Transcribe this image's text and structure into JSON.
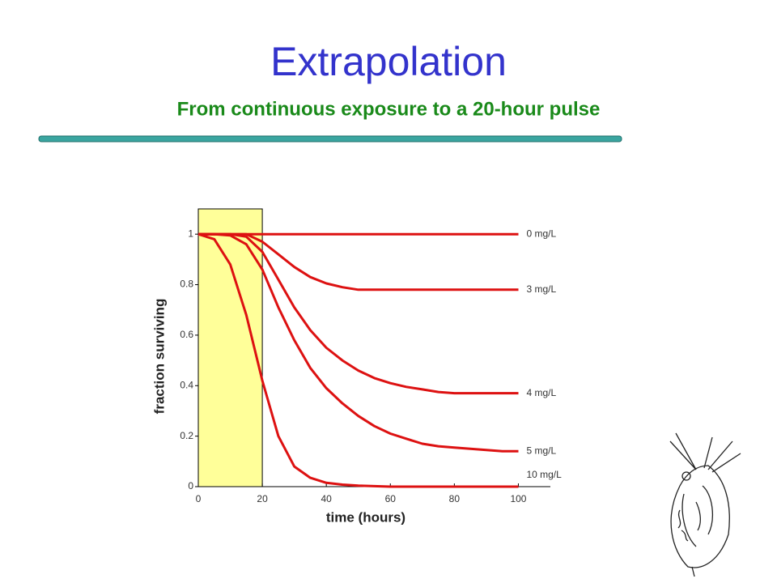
{
  "chart_data": {
    "type": "line",
    "title": "Extrapolation",
    "subtitle": "From continuous exposure to a 20-hour pulse",
    "x_label": "time (hours)",
    "y_label": "fraction surviving",
    "x": [
      0,
      5,
      10,
      15,
      20,
      25,
      30,
      35,
      40,
      45,
      50,
      55,
      60,
      65,
      70,
      75,
      80,
      85,
      90,
      95,
      100
    ],
    "series": [
      {
        "name": "0 mg/L",
        "color": "#dd1111",
        "values": [
          1,
          1,
          1,
          1,
          1,
          1,
          1,
          1,
          1,
          1,
          1,
          1,
          1,
          1,
          1,
          1,
          1,
          1,
          1,
          1,
          1
        ]
      },
      {
        "name": "3 mg/L",
        "color": "#dd1111",
        "values": [
          1,
          1,
          1,
          1,
          0.97,
          0.92,
          0.87,
          0.83,
          0.805,
          0.79,
          0.78,
          0.78,
          0.78,
          0.78,
          0.78,
          0.78,
          0.78,
          0.78,
          0.78,
          0.78,
          0.78
        ]
      },
      {
        "name": "4 mg/L",
        "color": "#dd1111",
        "values": [
          1,
          1,
          1,
          0.99,
          0.93,
          0.82,
          0.71,
          0.62,
          0.55,
          0.5,
          0.46,
          0.43,
          0.41,
          0.395,
          0.385,
          0.375,
          0.37,
          0.37,
          0.37,
          0.37,
          0.37
        ]
      },
      {
        "name": "5 mg/L",
        "color": "#dd1111",
        "values": [
          1,
          1,
          0.995,
          0.96,
          0.86,
          0.71,
          0.58,
          0.47,
          0.39,
          0.33,
          0.28,
          0.24,
          0.21,
          0.19,
          0.17,
          0.16,
          0.155,
          0.15,
          0.145,
          0.14,
          0.14
        ]
      },
      {
        "name": "10 mg/L",
        "color": "#dd1111",
        "values": [
          1,
          0.98,
          0.88,
          0.68,
          0.42,
          0.2,
          0.08,
          0.035,
          0.015,
          0.008,
          0.004,
          0.002,
          0,
          0,
          0,
          0,
          0,
          0,
          0,
          0,
          0
        ]
      }
    ],
    "shaded_x": [
      0,
      20
    ],
    "shade_color": "#ffff99",
    "xlim": [
      0,
      110
    ],
    "xticks": [
      0,
      20,
      40,
      60,
      80,
      100
    ],
    "ylim": [
      0,
      1.1
    ],
    "yticks": [
      0,
      0.2,
      0.4,
      0.6,
      0.8,
      1
    ]
  }
}
